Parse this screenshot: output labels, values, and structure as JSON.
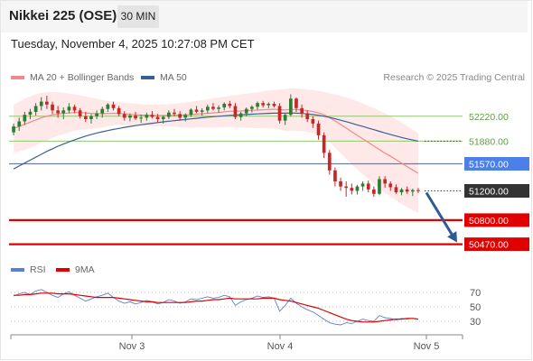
{
  "header": {
    "title": "Nikkei 225 (OSE)",
    "timeframe": "30 MIN"
  },
  "subtitle": "Tuesday, November 4, 2025 10:27:08 PM CET",
  "legend": {
    "ma20": "MA 20 + Bollinger Bands",
    "ma50": "MA 50"
  },
  "credit": "Research © 2025 Trading Central",
  "rsi_legend": {
    "rsi": "RSI",
    "ma9": "9MA"
  },
  "colors": {
    "up": "#2e7d32",
    "down": "#c62828",
    "ma20": "#ef8a8a",
    "ma50": "#3b5f95",
    "band": "#fde0e0",
    "support": "#e00000",
    "resistance": "#8fc870",
    "pivot": "#4c7fe8",
    "current": "#333333",
    "arrow": "#2f5a96",
    "rsi": "#5b7fd6"
  },
  "chart_data": [
    {
      "type": "candlestick",
      "title": "Nikkei 225 (OSE)",
      "xlabel": "",
      "ylabel": "",
      "x_ticks": [
        "Nov 3",
        "Nov 4",
        "Nov 5"
      ],
      "y_range": [
        50330,
        52600
      ],
      "candles": [
        [
          52000,
          52120,
          51960,
          52080
        ],
        [
          52080,
          52200,
          52020,
          52150
        ],
        [
          52150,
          52280,
          52100,
          52240
        ],
        [
          52240,
          52320,
          52180,
          52280
        ],
        [
          52280,
          52400,
          52230,
          52360
        ],
        [
          52360,
          52480,
          52300,
          52420
        ],
        [
          52420,
          52500,
          52320,
          52380
        ],
        [
          52380,
          52420,
          52250,
          52300
        ],
        [
          52300,
          52360,
          52200,
          52260
        ],
        [
          52260,
          52340,
          52180,
          52300
        ],
        [
          52300,
          52400,
          52260,
          52350
        ],
        [
          52350,
          52380,
          52260,
          52300
        ],
        [
          52300,
          52330,
          52190,
          52220
        ],
        [
          52220,
          52280,
          52140,
          52180
        ],
        [
          52180,
          52250,
          52120,
          52220
        ],
        [
          52220,
          52300,
          52180,
          52260
        ],
        [
          52260,
          52350,
          52200,
          52320
        ],
        [
          52320,
          52400,
          52280,
          52380
        ],
        [
          52380,
          52420,
          52300,
          52330
        ],
        [
          52330,
          52360,
          52220,
          52250
        ],
        [
          52250,
          52290,
          52160,
          52200
        ],
        [
          52200,
          52260,
          52150,
          52230
        ],
        [
          52230,
          52280,
          52170,
          52190
        ],
        [
          52190,
          52240,
          52130,
          52200
        ],
        [
          52200,
          52270,
          52160,
          52240
        ],
        [
          52240,
          52290,
          52190,
          52210
        ],
        [
          52210,
          52250,
          52140,
          52180
        ],
        [
          52180,
          52230,
          52120,
          52210
        ],
        [
          52210,
          52300,
          52180,
          52270
        ],
        [
          52270,
          52320,
          52220,
          52250
        ],
        [
          52250,
          52290,
          52160,
          52200
        ],
        [
          52200,
          52260,
          52150,
          52240
        ],
        [
          52240,
          52330,
          52210,
          52310
        ],
        [
          52310,
          52360,
          52260,
          52280
        ],
        [
          52280,
          52330,
          52230,
          52300
        ],
        [
          52300,
          52380,
          52260,
          52350
        ],
        [
          52350,
          52400,
          52300,
          52320
        ],
        [
          52320,
          52370,
          52270,
          52340
        ],
        [
          52340,
          52410,
          52300,
          52390
        ],
        [
          52390,
          52430,
          52330,
          52360
        ],
        [
          52360,
          52400,
          52180,
          52210
        ],
        [
          52210,
          52280,
          52160,
          52260
        ],
        [
          52260,
          52340,
          52220,
          52320
        ],
        [
          52320,
          52370,
          52270,
          52350
        ],
        [
          52350,
          52420,
          52310,
          52400
        ],
        [
          52400,
          52430,
          52340,
          52370
        ],
        [
          52370,
          52410,
          52330,
          52390
        ],
        [
          52390,
          52420,
          52340,
          52360
        ],
        [
          52360,
          52400,
          52120,
          52160
        ],
        [
          52160,
          52260,
          52100,
          52240
        ],
        [
          52240,
          52520,
          52220,
          52460
        ],
        [
          52460,
          52480,
          52280,
          52330
        ],
        [
          52330,
          52380,
          52200,
          52260
        ],
        [
          52260,
          52300,
          52140,
          52180
        ],
        [
          52180,
          52220,
          52060,
          52120
        ],
        [
          52120,
          52160,
          51900,
          51960
        ],
        [
          51960,
          52000,
          51650,
          51720
        ],
        [
          51720,
          51760,
          51420,
          51480
        ],
        [
          51480,
          51520,
          51260,
          51330
        ],
        [
          51330,
          51380,
          51200,
          51260
        ],
        [
          51260,
          51330,
          51120,
          51240
        ],
        [
          51240,
          51300,
          51150,
          51200
        ],
        [
          51200,
          51280,
          51150,
          51260
        ],
        [
          51260,
          51330,
          51200,
          51300
        ],
        [
          51300,
          51340,
          51180,
          51220
        ],
        [
          51220,
          51260,
          51120,
          51160
        ],
        [
          51160,
          51400,
          51140,
          51360
        ],
        [
          51360,
          51400,
          51240,
          51300
        ],
        [
          51300,
          51330,
          51200,
          51250
        ],
        [
          51250,
          51290,
          51160,
          51180
        ],
        [
          51180,
          51240,
          51140,
          51220
        ],
        [
          51220,
          51260,
          51160,
          51190
        ],
        [
          51190,
          51230,
          51130,
          51210
        ],
        [
          51210,
          51240,
          51170,
          51200
        ]
      ],
      "ma20": [
        52050,
        52080,
        52110,
        52140,
        52170,
        52200,
        52220,
        52240,
        52250,
        52260,
        52265,
        52270,
        52270,
        52265,
        52260,
        52255,
        52255,
        52258,
        52260,
        52258,
        52252,
        52246,
        52240,
        52236,
        52234,
        52232,
        52230,
        52230,
        52232,
        52234,
        52236,
        52238,
        52242,
        52248,
        52254,
        52260,
        52266,
        52272,
        52280,
        52288,
        52290,
        52292,
        52296,
        52300,
        52304,
        52308,
        52312,
        52316,
        52310,
        52306,
        52312,
        52312,
        52305,
        52296,
        52284,
        52266,
        52240,
        52202,
        52156,
        52108,
        52058,
        52008,
        51958,
        51910,
        51862,
        51812,
        51764,
        51716,
        51672,
        51626,
        51580,
        51532,
        51486,
        51440
      ],
      "bb_upper": [
        52380,
        52420,
        52460,
        52490,
        52520,
        52540,
        52550,
        52552,
        52548,
        52540,
        52530,
        52518,
        52504,
        52490,
        52474,
        52458,
        52442,
        52430,
        52422,
        52414,
        52406,
        52398,
        52390,
        52384,
        52380,
        52378,
        52378,
        52380,
        52384,
        52390,
        52398,
        52408,
        52418,
        52428,
        52440,
        52452,
        52464,
        52476,
        52488,
        52500,
        52510,
        52520,
        52530,
        52540,
        52550,
        52560,
        52570,
        52580,
        52586,
        52590,
        52600,
        52600,
        52595,
        52588,
        52578,
        52566,
        52552,
        52536,
        52518,
        52500,
        52478,
        52452,
        52424,
        52394,
        52362,
        52330,
        52296,
        52260,
        52222,
        52180,
        52136,
        52088,
        52038,
        51986
      ],
      "bb_lower": [
        51720,
        51740,
        51760,
        51790,
        51820,
        51860,
        51890,
        51928,
        51952,
        51980,
        52000,
        52022,
        52036,
        52040,
        52046,
        52052,
        52068,
        52086,
        52098,
        52102,
        52098,
        52094,
        52090,
        52088,
        52088,
        52086,
        52082,
        52080,
        52080,
        52078,
        52074,
        52068,
        52066,
        52068,
        52068,
        52068,
        52068,
        52068,
        52072,
        52076,
        52070,
        52064,
        52062,
        52060,
        52058,
        52056,
        52054,
        52052,
        52034,
        52022,
        52024,
        52024,
        52015,
        52004,
        51990,
        51966,
        51928,
        51868,
        51794,
        51716,
        51638,
        51564,
        51492,
        51426,
        51362,
        51294,
        51232,
        51172,
        51122,
        51072,
        51024,
        50976,
        50934,
        50894
      ],
      "ma50": [
        51500,
        51540,
        51580,
        51620,
        51660,
        51700,
        51740,
        51775,
        51810,
        51840,
        51870,
        51898,
        51924,
        51948,
        51970,
        51990,
        52008,
        52024,
        52040,
        52054,
        52068,
        52080,
        52092,
        52104,
        52114,
        52124,
        52134,
        52144,
        52152,
        52160,
        52168,
        52176,
        52184,
        52192,
        52200,
        52208,
        52214,
        52220,
        52226,
        52232,
        52236,
        52240,
        52244,
        52248,
        52252,
        52256,
        52260,
        52262,
        52262,
        52262,
        52264,
        52262,
        52258,
        52252,
        52244,
        52234,
        52220,
        52204,
        52186,
        52166,
        52146,
        52124,
        52102,
        52080,
        52058,
        52036,
        52014,
        51992,
        51970,
        51950,
        51930,
        51912,
        51896,
        51880
      ],
      "levels": [
        {
          "label": "52220.00",
          "value": 52220,
          "kind": "resistance"
        },
        {
          "label": "51880.00",
          "value": 51880,
          "kind": "resistance"
        },
        {
          "label": "51570.00",
          "value": 51570,
          "kind": "pivot"
        },
        {
          "label": "51200.00",
          "value": 51200,
          "kind": "current"
        },
        {
          "label": "50800.00",
          "value": 50800,
          "kind": "support"
        },
        {
          "label": "50470.00",
          "value": 50470,
          "kind": "support"
        }
      ],
      "forecast_arrow": {
        "from": 51200,
        "to": 50470
      }
    },
    {
      "type": "line",
      "title": "RSI",
      "y_ticks": [
        "70",
        "50",
        "30"
      ],
      "y_range": [
        15,
        85
      ],
      "series": [
        {
          "name": "RSI",
          "values": [
            65,
            68,
            70,
            67,
            72,
            74,
            70,
            66,
            63,
            68,
            71,
            66,
            62,
            58,
            61,
            64,
            66,
            69,
            63,
            58,
            55,
            57,
            54,
            56,
            59,
            57,
            54,
            56,
            60,
            58,
            55,
            57,
            61,
            60,
            62,
            64,
            62,
            63,
            66,
            64,
            52,
            57,
            60,
            62,
            65,
            63,
            64,
            62,
            44,
            52,
            62,
            55,
            50,
            46,
            43,
            38,
            33,
            28,
            26,
            25,
            28,
            27,
            30,
            33,
            31,
            30,
            38,
            35,
            34,
            32,
            34,
            33,
            34,
            33
          ]
        },
        {
          "name": "9MA",
          "values": [
            66,
            66,
            67,
            67,
            68,
            69,
            69,
            69,
            68,
            68,
            68,
            67,
            66,
            65,
            64,
            63,
            63,
            63,
            63,
            62,
            61,
            60,
            59,
            58,
            57,
            57,
            56,
            56,
            56,
            56,
            56,
            56,
            57,
            58,
            58,
            59,
            60,
            60,
            61,
            62,
            61,
            61,
            61,
            61,
            61,
            62,
            62,
            62,
            60,
            59,
            58,
            56,
            54,
            52,
            50,
            48,
            45,
            42,
            39,
            36,
            33,
            31,
            30,
            29,
            29,
            29,
            30,
            31,
            32,
            33,
            33,
            34,
            34,
            33
          ]
        }
      ]
    }
  ]
}
